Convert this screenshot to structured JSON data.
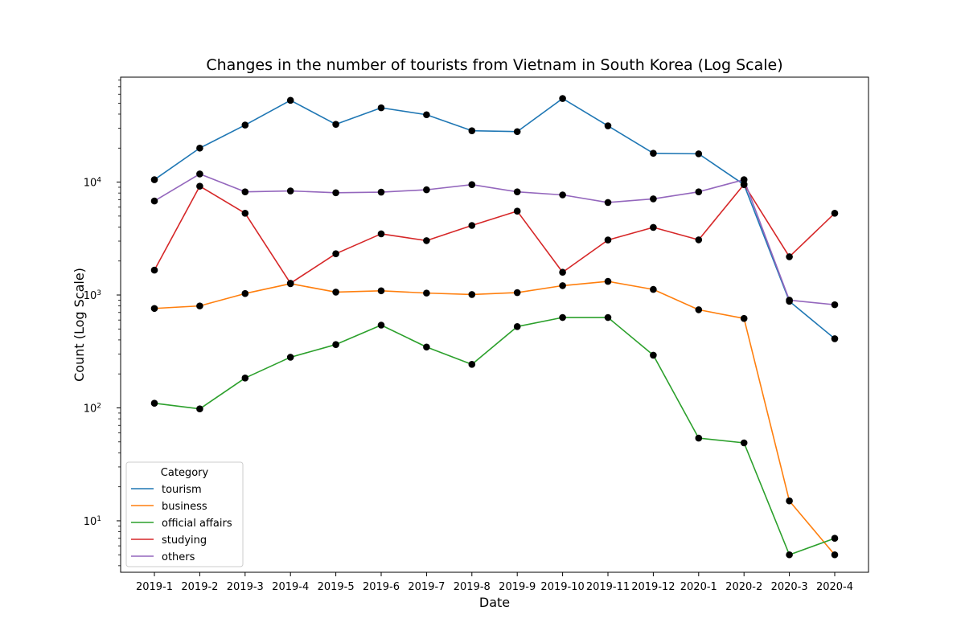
{
  "chart_data": {
    "type": "line",
    "title": "Changes in the number of tourists from Vietnam in South Korea (Log Scale)",
    "xlabel": "Date",
    "ylabel": "Count (Log Scale)",
    "yscale": "log",
    "ylim": [
      3.5,
      85000
    ],
    "y_ticks": [
      {
        "value": 10,
        "base": "10",
        "exp": "1"
      },
      {
        "value": 100,
        "base": "10",
        "exp": "2"
      },
      {
        "value": 1000,
        "base": "10",
        "exp": "3"
      },
      {
        "value": 10000,
        "base": "10",
        "exp": "4"
      }
    ],
    "categories": [
      "2019-1",
      "2019-2",
      "2019-3",
      "2019-4",
      "2019-5",
      "2019-6",
      "2019-7",
      "2019-8",
      "2019-9",
      "2019-10",
      "2019-11",
      "2019-12",
      "2020-1",
      "2020-2",
      "2020-3",
      "2020-4"
    ],
    "legend_title": "Category",
    "legend_position": "lower-left",
    "marker_color": "#000000",
    "series": [
      {
        "name": "tourism",
        "color": "#1f77b4",
        "values": [
          10500,
          20000,
          32000,
          53000,
          32500,
          45500,
          39500,
          28500,
          28000,
          55000,
          31500,
          18000,
          17800,
          9500,
          880,
          410
        ]
      },
      {
        "name": "business",
        "color": "#ff7f0e",
        "values": [
          760,
          800,
          1030,
          1260,
          1060,
          1090,
          1040,
          1010,
          1050,
          1210,
          1320,
          1120,
          740,
          620,
          15,
          5
        ]
      },
      {
        "name": "official affairs",
        "color": "#2ca02c",
        "values": [
          110,
          98,
          184,
          281,
          364,
          541,
          346,
          243,
          525,
          632,
          632,
          293,
          54,
          49,
          5,
          7
        ]
      },
      {
        "name": "studying",
        "color": "#d62728",
        "values": [
          1660,
          9200,
          5300,
          1270,
          2320,
          3480,
          3030,
          4130,
          5530,
          1590,
          3070,
          3970,
          3080,
          9550,
          2180,
          5300
        ]
      },
      {
        "name": "others",
        "color": "#9467bd",
        "values": [
          6800,
          11800,
          8200,
          8350,
          8050,
          8150,
          8550,
          9500,
          8200,
          7700,
          6600,
          7100,
          8200,
          10500,
          900,
          820
        ]
      }
    ]
  }
}
